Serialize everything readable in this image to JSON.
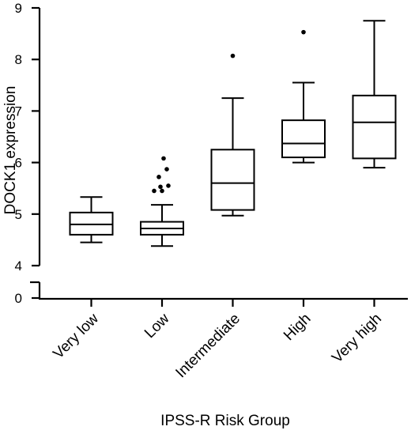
{
  "chart_data": {
    "type": "box",
    "xlabel": "IPSS-R Risk Group",
    "ylabel": "DOCK1 expression",
    "ylim": [
      4,
      9
    ],
    "broken_y_axis": true,
    "y_break_low_tick": "0",
    "yticks": [
      "4",
      "5",
      "6",
      "7",
      "8",
      "9"
    ],
    "categories": [
      "Very low",
      "Low",
      "Intermediate",
      "High",
      "Very high"
    ],
    "boxes": [
      {
        "category": "Very low",
        "whisker_low": 4.45,
        "q1": 4.6,
        "median": 4.8,
        "q3": 5.03,
        "whisker_high": 5.33,
        "outliers": []
      },
      {
        "category": "Low",
        "whisker_low": 4.38,
        "q1": 4.6,
        "median": 4.72,
        "q3": 4.85,
        "whisker_high": 5.18,
        "outliers": [
          5.45,
          5.45,
          5.53,
          5.55,
          5.72,
          5.87,
          6.08
        ]
      },
      {
        "category": "Intermediate",
        "whisker_low": 4.97,
        "q1": 5.08,
        "median": 5.6,
        "q3": 6.25,
        "whisker_high": 7.25,
        "outliers": [
          8.07
        ]
      },
      {
        "category": "High",
        "whisker_low": 6.0,
        "q1": 6.1,
        "median": 6.37,
        "q3": 6.82,
        "whisker_high": 7.55,
        "outliers": [
          8.53
        ]
      },
      {
        "category": "Very high",
        "whisker_low": 5.9,
        "q1": 6.08,
        "median": 6.78,
        "q3": 7.3,
        "whisker_high": 8.75,
        "outliers": []
      }
    ]
  }
}
